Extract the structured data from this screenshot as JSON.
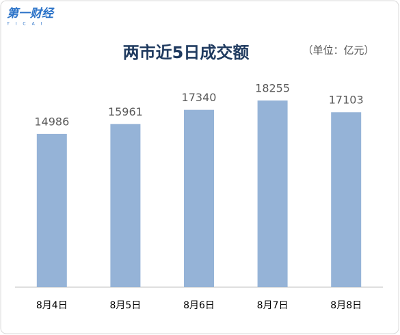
{
  "logo": {
    "text": "第一财经",
    "sub": "YICAI"
  },
  "chart_data": {
    "type": "bar",
    "title": "两市近5日成交额",
    "subtitle": "（单位：亿元）",
    "categories": [
      "8月4日",
      "8月5日",
      "8月6日",
      "8月7日",
      "8月8日"
    ],
    "values": [
      14986,
      15961,
      17340,
      18255,
      17103
    ],
    "color": "#95b3d7"
  }
}
